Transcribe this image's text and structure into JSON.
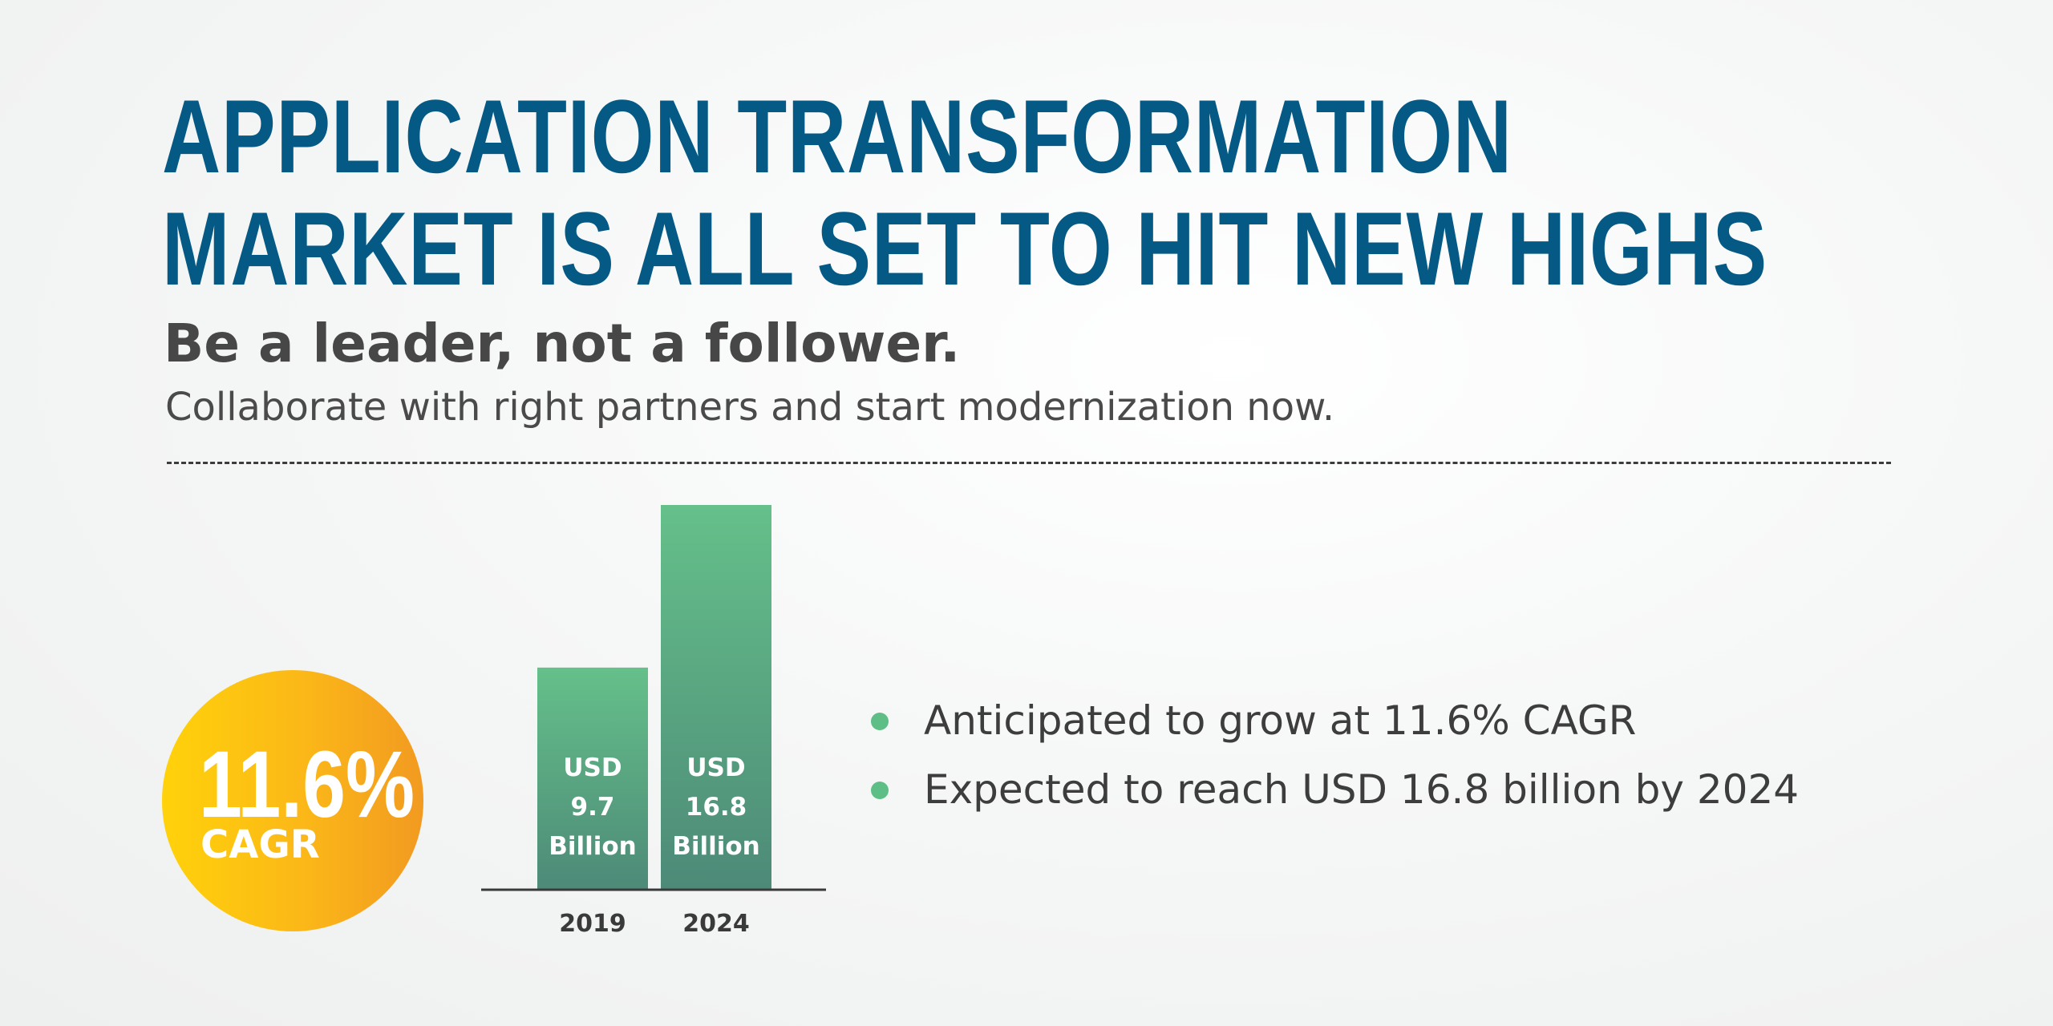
{
  "headline": {
    "line1": "APPLICATION TRANSFORMATION",
    "line2": "MARKET IS ALL SET TO HIT NEW HIGHS"
  },
  "tagline": "Be a leader, not a follower.",
  "subtext": "Collaborate with right partners and start modernization now.",
  "cagr_badge": {
    "value": "11.6%",
    "label": "CAGR"
  },
  "bullets": [
    "Anticipated to grow at 11.6% CAGR",
    "Expected to reach USD 16.8 billion by 2024"
  ],
  "colors": {
    "headline": "#055a85",
    "bar_top": "#65c08a",
    "bar_bottom": "#4d8a78",
    "badge_start": "#ffd20a",
    "badge_end": "#f29a21",
    "bullet": "#5dbf86"
  },
  "chart_data": {
    "type": "bar",
    "categories": [
      "2019",
      "2024"
    ],
    "values": [
      9.7,
      16.8
    ],
    "bar_labels": [
      [
        "USD",
        "9.7",
        "Billion"
      ],
      [
        "USD",
        "16.8",
        "Billion"
      ]
    ],
    "title": "",
    "xlabel": "",
    "ylabel": "",
    "ylim": [
      0,
      16.8
    ],
    "grid": false
  }
}
